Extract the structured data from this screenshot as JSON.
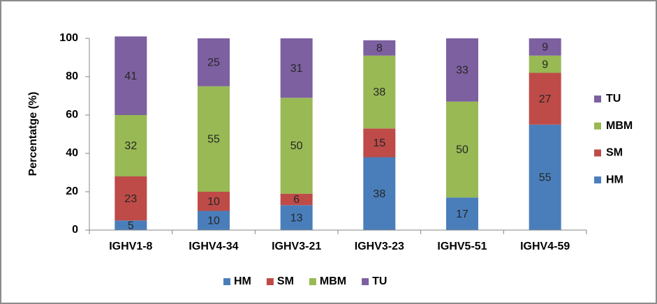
{
  "chart_data": {
    "type": "stacked_bar",
    "y_label": "Percentatge (%)",
    "categories": [
      "IGHV1-8",
      "IGHV4-34",
      "IGHV3-21",
      "IGHV3-23",
      "IGHV5-51",
      "IGHV4-59"
    ],
    "series": [
      {
        "name": "HM",
        "color": "#4a7ebb",
        "values": [
          5,
          10,
          13,
          38,
          17,
          55
        ]
      },
      {
        "name": "SM",
        "color": "#be4b48",
        "values": [
          23,
          10,
          6,
          15,
          null,
          27
        ]
      },
      {
        "name": "MBM",
        "color": "#98b954",
        "values": [
          32,
          55,
          50,
          38,
          50,
          9
        ]
      },
      {
        "name": "TU",
        "color": "#7d60a0",
        "values": [
          41,
          25,
          31,
          8,
          33,
          9
        ]
      }
    ],
    "ylim": [
      0,
      100
    ],
    "yticks": [
      0,
      20,
      40,
      60,
      80,
      100
    ],
    "grid": false
  }
}
